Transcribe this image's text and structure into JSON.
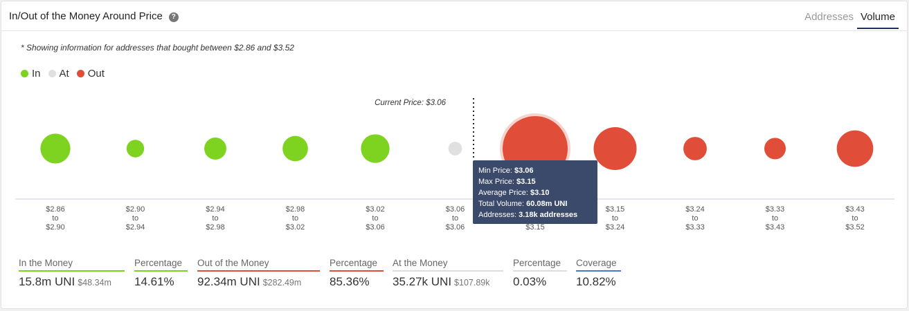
{
  "header": {
    "title": "In/Out of the Money Around Price",
    "help_icon": "?",
    "tabs": [
      {
        "label": "Addresses",
        "active": false
      },
      {
        "label": "Volume",
        "active": true
      }
    ]
  },
  "note": "* Showing information for addresses that bought between $2.86 and $3.52",
  "legend": [
    {
      "label": "In",
      "color": "#7ed321"
    },
    {
      "label": "At",
      "color": "#e0e0e0"
    },
    {
      "label": "Out",
      "color": "#e04e39"
    }
  ],
  "chart_data": {
    "type": "scatter",
    "current_price_label": "Current Price: $3.06",
    "colors": {
      "in": "#7ed321",
      "at": "#e0e0e0",
      "out": "#e04e39"
    },
    "bins": [
      {
        "from": "$2.86",
        "to": "$2.90",
        "status": "in",
        "relative_size": 0.46
      },
      {
        "from": "$2.90",
        "to": "$2.94",
        "status": "in",
        "relative_size": 0.27
      },
      {
        "from": "$2.94",
        "to": "$2.98",
        "status": "in",
        "relative_size": 0.34
      },
      {
        "from": "$2.98",
        "to": "$3.02",
        "status": "in",
        "relative_size": 0.39
      },
      {
        "from": "$3.02",
        "to": "$3.06",
        "status": "in",
        "relative_size": 0.44
      },
      {
        "from": "$3.06",
        "to": "$3.06",
        "status": "at",
        "relative_size": 0.21
      },
      {
        "from": "$3.06",
        "to": "$3.15",
        "status": "out",
        "relative_size": 1.0,
        "highlighted": true
      },
      {
        "from": "$3.15",
        "to": "$3.24",
        "status": "out",
        "relative_size": 0.66
      },
      {
        "from": "$3.24",
        "to": "$3.33",
        "status": "out",
        "relative_size": 0.36
      },
      {
        "from": "$3.33",
        "to": "$3.43",
        "status": "out",
        "relative_size": 0.33
      },
      {
        "from": "$3.43",
        "to": "$3.52",
        "status": "out",
        "relative_size": 0.56
      }
    ],
    "tick_to_word": "to",
    "tooltip": {
      "min_price_label": "Min Price:",
      "min_price": "$3.06",
      "max_price_label": "Max Price:",
      "max_price": "$3.15",
      "avg_price_label": "Average Price:",
      "avg_price": "$3.10",
      "volume_label": "Total Volume:",
      "volume": "60.08m UNI",
      "addresses_label": "Addresses:",
      "addresses": "3.18k addresses"
    }
  },
  "stats": [
    {
      "label": "In the Money",
      "value": "15.8m UNI",
      "sub": "$48.34m",
      "bar_color": "#7ed321"
    },
    {
      "label": "Percentage",
      "value": "14.61%",
      "sub": "",
      "bar_color": "#7ed321"
    },
    {
      "label": "Out of the Money",
      "value": "92.34m UNI",
      "sub": "$282.49m",
      "bar_color": "#e04e39"
    },
    {
      "label": "Percentage",
      "value": "85.36%",
      "sub": "",
      "bar_color": "#e04e39"
    },
    {
      "label": "At the Money",
      "value": "35.27k UNI",
      "sub": "$107.89k",
      "bar_color": "#dddddd"
    },
    {
      "label": "Percentage",
      "value": "0.03%",
      "sub": "",
      "bar_color": "#dddddd"
    },
    {
      "label": "Coverage",
      "value": "10.82%",
      "sub": "",
      "bar_color": "#4a77c9"
    }
  ]
}
